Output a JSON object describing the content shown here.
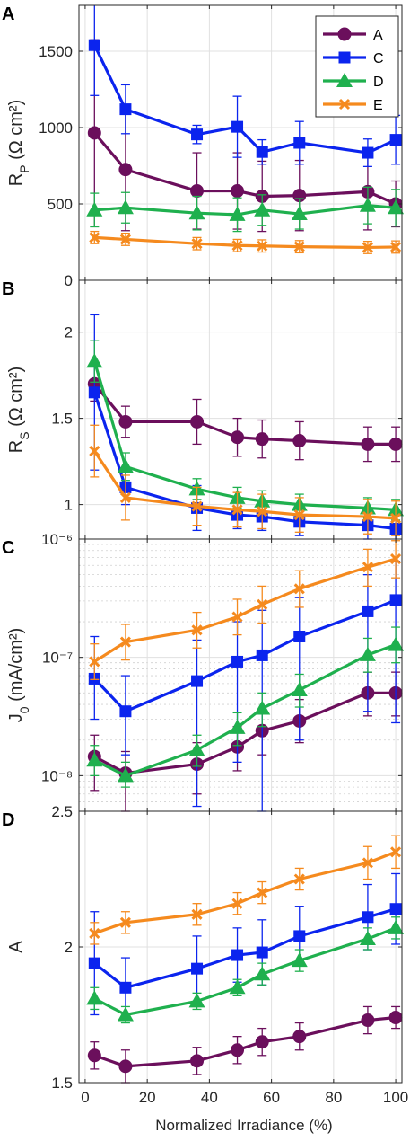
{
  "figure": {
    "xlabel": "Normalized Irradiance (%)"
  },
  "series_styles": [
    {
      "name": "A",
      "color": "#6b0f5c",
      "marker": "circle"
    },
    {
      "name": "C",
      "color": "#0b24ee",
      "marker": "square"
    },
    {
      "name": "D",
      "color": "#1fb04e",
      "marker": "triangle"
    },
    {
      "name": "E",
      "color": "#f58a1e",
      "marker": "x"
    }
  ],
  "chart_data": [
    {
      "panel": "A",
      "type": "line",
      "ylabel_main": "R",
      "ylabel_sub": "P",
      "ylabel_unit": " (Ω cm²)",
      "xlim": [
        -2,
        102
      ],
      "ylim": [
        0,
        1800
      ],
      "xticks": [
        0,
        20,
        40,
        60,
        80,
        100
      ],
      "yticks": [
        0,
        500,
        1000,
        1500
      ],
      "ytick_labels": [
        "0",
        "500",
        "1000",
        "1500"
      ],
      "grid": true,
      "legend": "top-right",
      "x": [
        3,
        13,
        36,
        49,
        57,
        69,
        91,
        100
      ],
      "series": [
        {
          "name": "A",
          "values": [
            965,
            725,
            585,
            585,
            550,
            555,
            580,
            500
          ],
          "err_lo": [
            610,
            400,
            250,
            250,
            230,
            230,
            250,
            150
          ],
          "err_hi": [
            610,
            400,
            250,
            250,
            230,
            230,
            250,
            150
          ]
        },
        {
          "name": "C",
          "values": [
            1540,
            1120,
            955,
            1005,
            840,
            900,
            835,
            920
          ],
          "err_lo": [
            330,
            160,
            60,
            200,
            80,
            140,
            90,
            160
          ],
          "err_hi": [
            330,
            160,
            60,
            200,
            80,
            140,
            90,
            160
          ]
        },
        {
          "name": "D",
          "values": [
            460,
            475,
            440,
            430,
            460,
            435,
            490,
            475
          ],
          "err_lo": [
            110,
            100,
            110,
            110,
            100,
            100,
            120,
            120
          ],
          "err_hi": [
            110,
            100,
            110,
            110,
            100,
            100,
            120,
            120
          ]
        },
        {
          "name": "E",
          "values": [
            280,
            268,
            240,
            228,
            225,
            220,
            215,
            218
          ],
          "err_lo": [
            40,
            40,
            40,
            40,
            40,
            40,
            40,
            40
          ],
          "err_hi": [
            40,
            40,
            40,
            40,
            40,
            40,
            40,
            40
          ]
        }
      ]
    },
    {
      "panel": "B",
      "type": "line",
      "ylabel_main": "R",
      "ylabel_sub": "S",
      "ylabel_unit": " (Ω cm²)",
      "xlim": [
        -2,
        102
      ],
      "ylim": [
        0.8,
        2.3
      ],
      "xticks": [
        0,
        20,
        40,
        60,
        80,
        100
      ],
      "yticks": [
        1,
        1.5,
        2
      ],
      "ytick_labels": [
        "1",
        "1.5",
        "2"
      ],
      "grid": true,
      "x": [
        3,
        13,
        36,
        49,
        57,
        69,
        91,
        100
      ],
      "series": [
        {
          "name": "A",
          "values": [
            1.7,
            1.48,
            1.48,
            1.39,
            1.38,
            1.37,
            1.35,
            1.35
          ],
          "err_lo": [
            0.1,
            0.09,
            0.13,
            0.11,
            0.11,
            0.11,
            0.1,
            0.1
          ],
          "err_hi": [
            0.1,
            0.09,
            0.13,
            0.11,
            0.11,
            0.11,
            0.1,
            0.1
          ]
        },
        {
          "name": "C",
          "values": [
            1.65,
            1.1,
            0.98,
            0.94,
            0.93,
            0.9,
            0.88,
            0.86
          ],
          "err_lo": [
            0.45,
            0.1,
            0.13,
            0.08,
            0.08,
            0.08,
            0.08,
            0.08
          ],
          "err_hi": [
            0.45,
            0.1,
            0.13,
            0.08,
            0.08,
            0.08,
            0.08,
            0.08
          ]
        },
        {
          "name": "D",
          "values": [
            1.83,
            1.22,
            1.09,
            1.04,
            1.02,
            1.0,
            0.98,
            0.97
          ],
          "err_lo": [
            0.12,
            0.08,
            0.06,
            0.06,
            0.06,
            0.06,
            0.06,
            0.06
          ],
          "err_hi": [
            0.12,
            0.08,
            0.06,
            0.06,
            0.06,
            0.06,
            0.06,
            0.06
          ]
        },
        {
          "name": "E",
          "values": [
            1.31,
            1.04,
            0.99,
            0.97,
            0.96,
            0.94,
            0.93,
            0.92
          ],
          "err_lo": [
            0.15,
            0.13,
            0.11,
            0.1,
            0.1,
            0.1,
            0.1,
            0.1
          ],
          "err_hi": [
            0.15,
            0.13,
            0.11,
            0.1,
            0.1,
            0.1,
            0.1,
            0.1
          ]
        }
      ]
    },
    {
      "panel": "C",
      "type": "line",
      "ylabel_main": "J",
      "ylabel_sub": "0",
      "ylabel_unit": " (mA/cm²)",
      "yscale": "log",
      "xlim": [
        -2,
        102
      ],
      "ylim": [
        5e-09,
        1e-06
      ],
      "xticks": [
        0,
        20,
        40,
        60,
        80,
        100
      ],
      "yticks": [
        1e-08,
        1e-07,
        1e-06
      ],
      "ytick_labels": [
        "10⁻⁸",
        "10⁻⁷",
        "10⁻⁶"
      ],
      "grid": true,
      "minor_grid": true,
      "x": [
        3,
        13,
        36,
        49,
        57,
        69,
        91,
        100
      ],
      "series": [
        {
          "name": "A",
          "values": [
            1.45e-08,
            1.05e-08,
            1.25e-08,
            1.75e-08,
            2.4e-08,
            2.9e-08,
            5e-08,
            5e-08
          ],
          "err_lo": [
            7.5e-09,
            5e-09,
            7e-09,
            1.1e-08,
            1.5e-08,
            1.9e-08,
            3.2e-08,
            3.2e-08
          ],
          "err_hi": [
            2.2e-08,
            1.6e-08,
            1.9e-08,
            2.6e-08,
            3.6e-08,
            4.4e-08,
            7.5e-08,
            7.5e-08
          ]
        },
        {
          "name": "C",
          "values": [
            6.6e-08,
            3.5e-08,
            6.3e-08,
            9.2e-08,
            1.04e-07,
            1.5e-07,
            2.45e-07,
            3.05e-07
          ],
          "err_lo": [
            3e-08,
            1.5e-08,
            5.5e-09,
            1.3e-08,
            5e-09,
            2e-08,
            3.5e-08,
            2.8e-08
          ],
          "err_hi": [
            1.5e-07,
            7e-08,
            1.4e-07,
            2e-07,
            2.5e-07,
            3.2e-07,
            5e-07,
            6.5e-07
          ]
        },
        {
          "name": "D",
          "values": [
            1.35e-08,
            1e-08,
            1.65e-08,
            2.55e-08,
            3.7e-08,
            5.3e-08,
            1.05e-07,
            1.28e-07
          ],
          "err_lo": [
            1e-08,
            8e-09,
            1.2e-08,
            1.8e-08,
            2.6e-08,
            3.8e-08,
            7.5e-08,
            9e-08
          ],
          "err_hi": [
            1.8e-08,
            1.3e-08,
            2.2e-08,
            3.4e-08,
            5e-08,
            7.2e-08,
            1.45e-07,
            1.8e-07
          ]
        },
        {
          "name": "E",
          "values": [
            9.2e-08,
            1.35e-07,
            1.7e-07,
            2.2e-07,
            2.8e-07,
            3.8e-07,
            5.8e-07,
            6.8e-07
          ],
          "err_lo": [
            6.5e-08,
            9.5e-08,
            1.2e-07,
            1.55e-07,
            1.95e-07,
            2.65e-07,
            4e-07,
            4.7e-07
          ],
          "err_hi": [
            1.3e-07,
            1.9e-07,
            2.4e-07,
            3.1e-07,
            4e-07,
            5.4e-07,
            8.2e-07,
            9.7e-07
          ]
        }
      ]
    },
    {
      "panel": "D",
      "type": "line",
      "ylabel_main": "A",
      "ylabel_sub": "",
      "ylabel_unit": "",
      "xlim": [
        -2,
        102
      ],
      "ylim": [
        1.5,
        2.5
      ],
      "xticks": [
        0,
        20,
        40,
        60,
        80,
        100
      ],
      "yticks": [
        1.5,
        2,
        2.5
      ],
      "ytick_labels": [
        "1.5",
        "2",
        "2.5"
      ],
      "grid": true,
      "x": [
        3,
        13,
        36,
        49,
        57,
        69,
        91,
        100
      ],
      "series": [
        {
          "name": "A",
          "values": [
            1.6,
            1.56,
            1.58,
            1.62,
            1.65,
            1.67,
            1.73,
            1.74
          ],
          "err_lo": [
            0.05,
            0.06,
            0.05,
            0.05,
            0.05,
            0.05,
            0.05,
            0.04
          ],
          "err_hi": [
            0.05,
            0.06,
            0.05,
            0.05,
            0.05,
            0.05,
            0.05,
            0.04
          ]
        },
        {
          "name": "C",
          "values": [
            1.94,
            1.85,
            1.92,
            1.97,
            1.98,
            2.04,
            2.11,
            2.14
          ],
          "err_lo": [
            0.19,
            0.11,
            0.12,
            0.1,
            0.12,
            0.11,
            0.12,
            0.13
          ],
          "err_hi": [
            0.19,
            0.11,
            0.12,
            0.1,
            0.12,
            0.11,
            0.12,
            0.13
          ]
        },
        {
          "name": "D",
          "values": [
            1.81,
            1.75,
            1.8,
            1.85,
            1.9,
            1.95,
            2.03,
            2.07
          ],
          "err_lo": [
            0.04,
            0.03,
            0.03,
            0.03,
            0.04,
            0.04,
            0.04,
            0.04
          ],
          "err_hi": [
            0.04,
            0.03,
            0.03,
            0.03,
            0.04,
            0.04,
            0.04,
            0.04
          ]
        },
        {
          "name": "E",
          "values": [
            2.05,
            2.09,
            2.12,
            2.16,
            2.2,
            2.25,
            2.31,
            2.35
          ],
          "err_lo": [
            0.04,
            0.04,
            0.04,
            0.04,
            0.04,
            0.04,
            0.06,
            0.06
          ],
          "err_hi": [
            0.04,
            0.04,
            0.04,
            0.04,
            0.04,
            0.04,
            0.06,
            0.06
          ]
        }
      ]
    }
  ]
}
